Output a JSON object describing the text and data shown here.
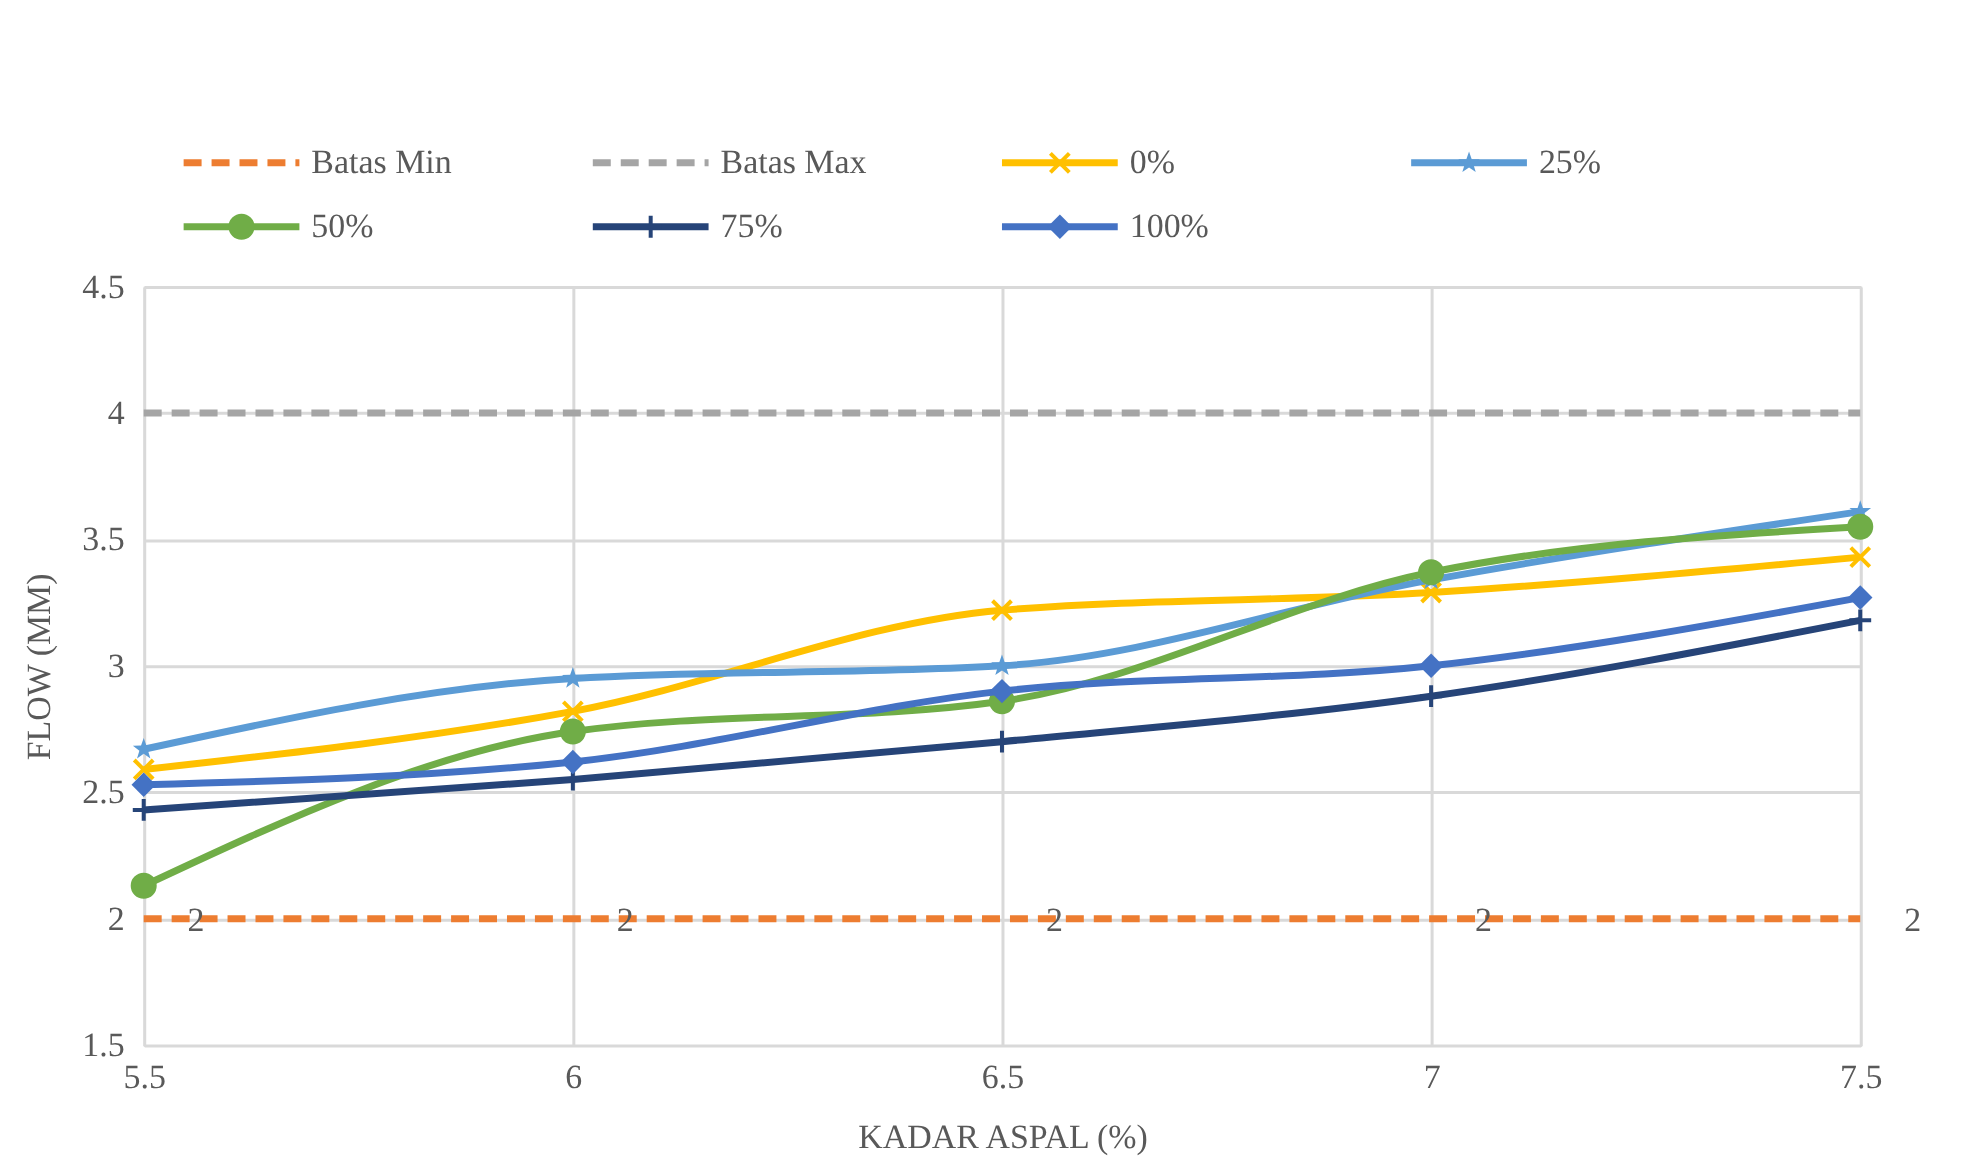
{
  "chart_data": {
    "type": "line",
    "xlabel": "KADAR ASPAL (%)",
    "ylabel": "FLOW (MM)",
    "x": [
      5.5,
      6,
      6.5,
      7,
      7.5
    ],
    "xlim": [
      5.5,
      7.5
    ],
    "xticks": [
      5.5,
      6,
      6.5,
      7,
      7.5
    ],
    "ylim": [
      1.5,
      4.5
    ],
    "yticks": [
      1.5,
      2,
      2.5,
      3,
      3.5,
      4,
      4.5
    ],
    "grid": true,
    "legend": "top",
    "series": [
      {
        "name": "Batas Min",
        "color": "#ed7d31",
        "values": [
          2,
          2,
          2,
          2,
          2
        ],
        "line_style": "dashed",
        "marker": "none",
        "value_labels": [
          "2",
          "2",
          "2",
          "2",
          "2"
        ]
      },
      {
        "name": "Batas Max",
        "color": "#a5a5a5",
        "values": [
          4,
          4,
          4,
          4,
          4
        ],
        "line_style": "dashed",
        "marker": "none"
      },
      {
        "name": "0%",
        "color": "#ffc000",
        "values": [
          2.59,
          2.82,
          3.22,
          3.29,
          3.43
        ],
        "line_style": "solid",
        "marker": "x"
      },
      {
        "name": "25%",
        "color": "#5b9bd5",
        "values": [
          2.67,
          2.95,
          3.0,
          3.34,
          3.61
        ],
        "line_style": "solid",
        "marker": "star"
      },
      {
        "name": "50%",
        "color": "#70ad47",
        "values": [
          2.13,
          2.74,
          2.86,
          3.37,
          3.55
        ],
        "line_style": "solid",
        "marker": "circle"
      },
      {
        "name": "75%",
        "color": "#264478",
        "values": [
          2.43,
          2.55,
          2.7,
          2.88,
          3.18
        ],
        "line_style": "solid",
        "marker": "cross"
      },
      {
        "name": "100%",
        "color": "#4472c4",
        "values": [
          2.53,
          2.62,
          2.9,
          3.0,
          3.27
        ],
        "line_style": "solid",
        "marker": "diamond"
      }
    ]
  }
}
